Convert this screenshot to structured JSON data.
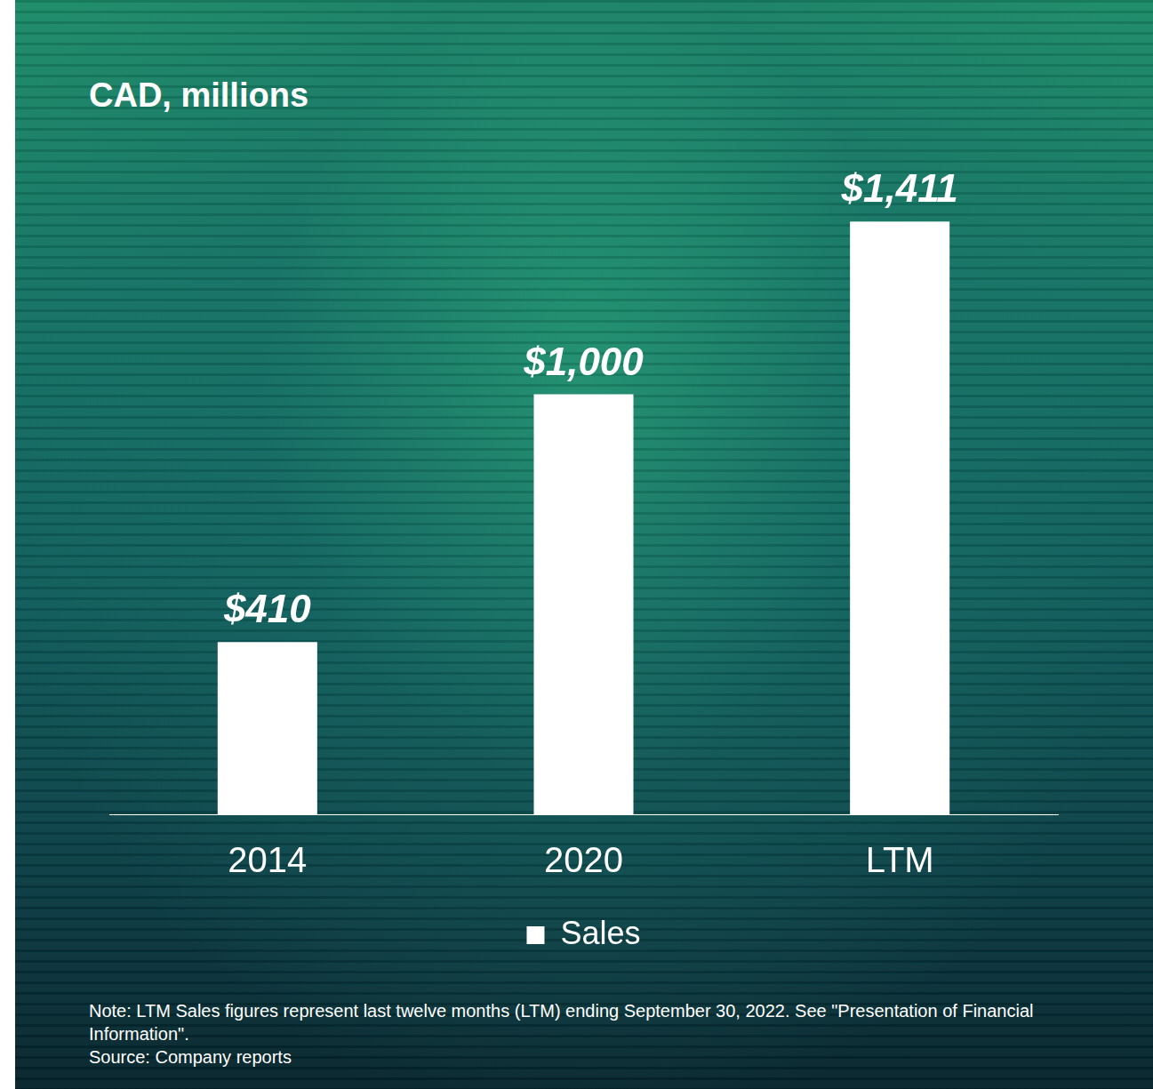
{
  "chart_data": {
    "type": "bar",
    "title": "CAD, millions",
    "categories": [
      "2014",
      "2020",
      "LTM"
    ],
    "series": [
      {
        "name": "Sales",
        "color": "#ffffff",
        "values": [
          410,
          1000,
          1411
        ],
        "value_labels": [
          "$410",
          "$1,000",
          "$1,411"
        ]
      }
    ],
    "data_labels": true,
    "tick_labels": "x",
    "grid": false,
    "legend": "bottom",
    "notes": [
      "Note: LTM Sales figures represent last twelve months (LTM) ending September 30, 2022.  See \"Presentation of Financial Information\".",
      "Source: Company reports"
    ]
  }
}
